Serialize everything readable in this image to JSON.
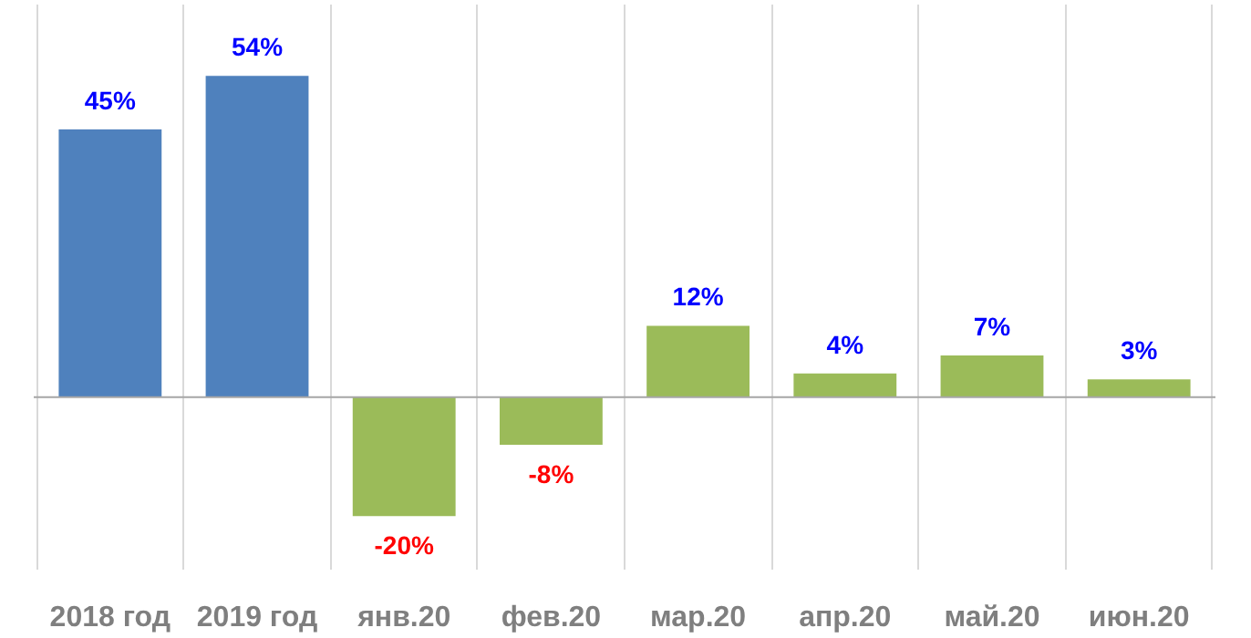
{
  "chart_data": {
    "type": "bar",
    "categories": [
      "2018 год",
      "2019 год",
      "янв.20",
      "фев.20",
      "мар.20",
      "апр.20",
      "май.20",
      "июн.20"
    ],
    "values": [
      45,
      54,
      -20,
      -8,
      12,
      4,
      7,
      3
    ],
    "colors": [
      "#4f81bd",
      "#4f81bd",
      "#9bbb59",
      "#9bbb59",
      "#9bbb59",
      "#9bbb59",
      "#9bbb59",
      "#9bbb59"
    ],
    "value_labels": [
      "45%",
      "54%",
      "-20%",
      "-8%",
      "12%",
      "4%",
      "7%",
      "3%"
    ],
    "ylim": [
      -29,
      66
    ],
    "grid": "x",
    "tick_labels": "x"
  }
}
